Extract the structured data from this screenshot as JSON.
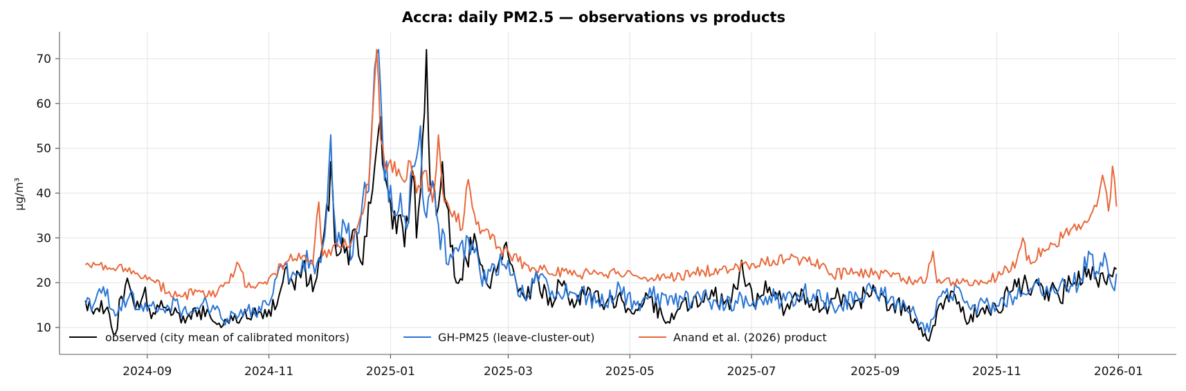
{
  "chart_data": {
    "type": "line",
    "title": "Accra: daily PM2.5 — observations vs products",
    "xlabel": "",
    "ylabel": "µg/m³",
    "xlim": [
      "2024-07-19",
      "2026-01-30"
    ],
    "ylim": [
      4,
      76
    ],
    "x_ticks": [
      "2024-09-01",
      "2024-11-01",
      "2025-01-01",
      "2025-03-01",
      "2025-05-01",
      "2025-07-01",
      "2025-09-01",
      "2025-11-01",
      "2026-01-01"
    ],
    "x_tick_labels": [
      "2024-09",
      "2024-11",
      "2025-01",
      "2025-03",
      "2025-05",
      "2025-07",
      "2025-09",
      "2025-11",
      "2026-01"
    ],
    "y_ticks": [
      10,
      20,
      30,
      40,
      50,
      60,
      70
    ],
    "grid": true,
    "legend_position": "lower-left",
    "series": [
      {
        "name": "observed (city mean of calibrated monitors)",
        "color": "#000000",
        "points": [
          [
            "2024-08-01",
            16
          ],
          [
            "2024-08-05",
            13
          ],
          [
            "2024-08-09",
            16
          ],
          [
            "2024-08-13",
            13
          ],
          [
            "2024-08-16",
            8.5
          ],
          [
            "2024-08-19",
            17
          ],
          [
            "2024-08-22",
            21
          ],
          [
            "2024-08-26",
            14
          ],
          [
            "2024-08-31",
            19
          ],
          [
            "2024-09-03",
            12
          ],
          [
            "2024-09-08",
            16
          ],
          [
            "2024-09-14",
            13
          ],
          [
            "2024-09-20",
            11
          ],
          [
            "2024-09-27",
            14
          ],
          [
            "2024-10-03",
            12
          ],
          [
            "2024-10-08",
            10
          ],
          [
            "2024-10-15",
            13
          ],
          [
            "2024-10-22",
            12
          ],
          [
            "2024-10-30",
            14
          ],
          [
            "2024-11-05",
            15
          ],
          [
            "2024-11-09",
            23
          ],
          [
            "2024-11-13",
            20
          ],
          [
            "2024-11-18",
            24
          ],
          [
            "2024-11-23",
            18
          ],
          [
            "2024-11-27",
            26
          ],
          [
            "2024-12-01",
            36
          ],
          [
            "2024-12-02",
            47
          ],
          [
            "2024-12-05",
            26
          ],
          [
            "2024-12-08",
            30
          ],
          [
            "2024-12-11",
            24
          ],
          [
            "2024-12-14",
            32
          ],
          [
            "2024-12-18",
            24
          ],
          [
            "2024-12-21",
            38
          ],
          [
            "2024-12-25",
            50
          ],
          [
            "2024-12-27",
            57
          ],
          [
            "2024-12-30",
            42
          ],
          [
            "2025-01-02",
            32
          ],
          [
            "2025-01-05",
            35
          ],
          [
            "2025-01-08",
            28
          ],
          [
            "2025-01-12",
            45
          ],
          [
            "2025-01-14",
            30
          ],
          [
            "2025-01-17",
            52
          ],
          [
            "2025-01-19",
            72
          ],
          [
            "2025-01-21",
            40
          ],
          [
            "2025-01-24",
            35
          ],
          [
            "2025-01-27",
            47
          ],
          [
            "2025-01-31",
            28
          ],
          [
            "2025-02-03",
            20
          ],
          [
            "2025-02-08",
            25
          ],
          [
            "2025-02-13",
            29
          ],
          [
            "2025-02-18",
            20
          ],
          [
            "2025-02-24",
            24
          ],
          [
            "2025-03-01",
            26
          ],
          [
            "2025-03-05",
            20
          ],
          [
            "2025-03-10",
            16
          ],
          [
            "2025-03-16",
            21
          ],
          [
            "2025-03-21",
            15
          ],
          [
            "2025-03-27",
            20
          ],
          [
            "2025-04-01",
            15
          ],
          [
            "2025-04-10",
            19
          ],
          [
            "2025-04-18",
            14
          ],
          [
            "2025-04-25",
            17
          ],
          [
            "2025-05-03",
            13
          ],
          [
            "2025-05-10",
            17
          ],
          [
            "2025-05-17",
            13
          ],
          [
            "2025-05-21",
            11
          ],
          [
            "2025-05-28",
            16
          ],
          [
            "2025-06-05",
            15
          ],
          [
            "2025-06-12",
            17
          ],
          [
            "2025-06-20",
            14
          ],
          [
            "2025-06-26",
            25
          ],
          [
            "2025-07-02",
            15
          ],
          [
            "2025-07-10",
            19
          ],
          [
            "2025-07-18",
            14
          ],
          [
            "2025-07-27",
            18
          ],
          [
            "2025-08-05",
            14
          ],
          [
            "2025-08-14",
            17
          ],
          [
            "2025-08-23",
            16
          ],
          [
            "2025-09-01",
            18
          ],
          [
            "2025-09-09",
            15
          ],
          [
            "2025-09-17",
            14
          ],
          [
            "2025-09-24",
            10
          ],
          [
            "2025-09-28",
            7
          ],
          [
            "2025-10-03",
            15
          ],
          [
            "2025-10-10",
            18
          ],
          [
            "2025-10-16",
            12
          ],
          [
            "2025-10-24",
            14
          ],
          [
            "2025-11-01",
            14
          ],
          [
            "2025-11-08",
            18
          ],
          [
            "2025-11-16",
            20
          ],
          [
            "2025-11-24",
            19
          ],
          [
            "2025-12-02",
            17
          ],
          [
            "2025-12-10",
            20
          ],
          [
            "2025-12-17",
            23
          ],
          [
            "2025-12-22",
            19
          ],
          [
            "2025-12-27",
            22
          ],
          [
            "2025-12-31",
            23
          ]
        ]
      },
      {
        "name": "GH-PM25 (leave-cluster-out)",
        "color": "#2b75d4",
        "points": [
          [
            "2024-08-01",
            15
          ],
          [
            "2024-08-06",
            16
          ],
          [
            "2024-08-11",
            17
          ],
          [
            "2024-08-17",
            13
          ],
          [
            "2024-08-23",
            17
          ],
          [
            "2024-08-28",
            14
          ],
          [
            "2024-09-02",
            15
          ],
          [
            "2024-09-08",
            14
          ],
          [
            "2024-09-15",
            16
          ],
          [
            "2024-09-21",
            13
          ],
          [
            "2024-09-28",
            15
          ],
          [
            "2024-10-05",
            14
          ],
          [
            "2024-10-11",
            12
          ],
          [
            "2024-10-18",
            14
          ],
          [
            "2024-10-25",
            13
          ],
          [
            "2024-11-01",
            15
          ],
          [
            "2024-11-07",
            24
          ],
          [
            "2024-11-12",
            21
          ],
          [
            "2024-11-18",
            25
          ],
          [
            "2024-11-24",
            22
          ],
          [
            "2024-11-28",
            28
          ],
          [
            "2024-12-01",
            45
          ],
          [
            "2024-12-02",
            53
          ],
          [
            "2024-12-05",
            28
          ],
          [
            "2024-12-09",
            33
          ],
          [
            "2024-12-13",
            26
          ],
          [
            "2024-12-17",
            34
          ],
          [
            "2024-12-20",
            40
          ],
          [
            "2024-12-23",
            58
          ],
          [
            "2024-12-25",
            71
          ],
          [
            "2024-12-26",
            72
          ],
          [
            "2024-12-28",
            52
          ],
          [
            "2024-12-31",
            38
          ],
          [
            "2025-01-03",
            35
          ],
          [
            "2025-01-06",
            40
          ],
          [
            "2025-01-09",
            32
          ],
          [
            "2025-01-13",
            46
          ],
          [
            "2025-01-16",
            55
          ],
          [
            "2025-01-18",
            36
          ],
          [
            "2025-01-21",
            40
          ],
          [
            "2025-01-25",
            33
          ],
          [
            "2025-01-30",
            24
          ],
          [
            "2025-02-04",
            27
          ],
          [
            "2025-02-09",
            30
          ],
          [
            "2025-02-15",
            22
          ],
          [
            "2025-02-22",
            24
          ],
          [
            "2025-03-01",
            25
          ],
          [
            "2025-03-05",
            20
          ],
          [
            "2025-03-11",
            17
          ],
          [
            "2025-03-18",
            22
          ],
          [
            "2025-03-25",
            17
          ],
          [
            "2025-04-01",
            18
          ],
          [
            "2025-04-10",
            17
          ],
          [
            "2025-04-18",
            15
          ],
          [
            "2025-04-26",
            19
          ],
          [
            "2025-05-04",
            15
          ],
          [
            "2025-05-12",
            17
          ],
          [
            "2025-05-20",
            15
          ],
          [
            "2025-05-28",
            16
          ],
          [
            "2025-06-05",
            17
          ],
          [
            "2025-06-14",
            15
          ],
          [
            "2025-06-23",
            16
          ],
          [
            "2025-07-01",
            15
          ],
          [
            "2025-07-10",
            17
          ],
          [
            "2025-07-18",
            16
          ],
          [
            "2025-07-27",
            18
          ],
          [
            "2025-08-05",
            16
          ],
          [
            "2025-08-14",
            15
          ],
          [
            "2025-08-23",
            17
          ],
          [
            "2025-09-01",
            19
          ],
          [
            "2025-09-08",
            16
          ],
          [
            "2025-09-16",
            15
          ],
          [
            "2025-09-22",
            12
          ],
          [
            "2025-09-28",
            9
          ],
          [
            "2025-10-04",
            17
          ],
          [
            "2025-10-12",
            19
          ],
          [
            "2025-10-20",
            15
          ],
          [
            "2025-10-28",
            15
          ],
          [
            "2025-11-05",
            15
          ],
          [
            "2025-11-12",
            19
          ],
          [
            "2025-11-20",
            20
          ],
          [
            "2025-11-28",
            18
          ],
          [
            "2025-12-06",
            19
          ],
          [
            "2025-12-13",
            21
          ],
          [
            "2025-12-17",
            27
          ],
          [
            "2025-12-22",
            22
          ],
          [
            "2025-12-26",
            25
          ],
          [
            "2025-12-29",
            19
          ],
          [
            "2025-12-31",
            22
          ]
        ]
      },
      {
        "name": "Anand et al. (2026) product",
        "color": "#e8683a",
        "points": [
          [
            "2024-08-01",
            24
          ],
          [
            "2024-08-06",
            24
          ],
          [
            "2024-08-12",
            23
          ],
          [
            "2024-08-18",
            24
          ],
          [
            "2024-08-24",
            22
          ],
          [
            "2024-08-30",
            21
          ],
          [
            "2024-09-05",
            20
          ],
          [
            "2024-09-12",
            18
          ],
          [
            "2024-09-19",
            17
          ],
          [
            "2024-09-26",
            18
          ],
          [
            "2024-10-03",
            17
          ],
          [
            "2024-10-10",
            20
          ],
          [
            "2024-10-17",
            24
          ],
          [
            "2024-10-21",
            19
          ],
          [
            "2024-10-28",
            20
          ],
          [
            "2024-11-04",
            22
          ],
          [
            "2024-11-11",
            25
          ],
          [
            "2024-11-18",
            26
          ],
          [
            "2024-11-23",
            24
          ],
          [
            "2024-11-26",
            38
          ],
          [
            "2024-11-28",
            26
          ],
          [
            "2024-12-03",
            28
          ],
          [
            "2024-12-08",
            28
          ],
          [
            "2024-12-13",
            30
          ],
          [
            "2024-12-17",
            35
          ],
          [
            "2024-12-21",
            42
          ],
          [
            "2024-12-24",
            65
          ],
          [
            "2024-12-25",
            72
          ],
          [
            "2024-12-27",
            52
          ],
          [
            "2024-12-30",
            45
          ],
          [
            "2025-01-03",
            47
          ],
          [
            "2025-01-07",
            43
          ],
          [
            "2025-01-11",
            47
          ],
          [
            "2025-01-14",
            40
          ],
          [
            "2025-01-18",
            45
          ],
          [
            "2025-01-22",
            38
          ],
          [
            "2025-01-25",
            53
          ],
          [
            "2025-01-28",
            38
          ],
          [
            "2025-02-02",
            36
          ],
          [
            "2025-02-06",
            32
          ],
          [
            "2025-02-09",
            43
          ],
          [
            "2025-02-13",
            33
          ],
          [
            "2025-02-18",
            32
          ],
          [
            "2025-02-24",
            28
          ],
          [
            "2025-03-02",
            26
          ],
          [
            "2025-03-10",
            24
          ],
          [
            "2025-03-20",
            23
          ],
          [
            "2025-03-31",
            22
          ],
          [
            "2025-04-12",
            22
          ],
          [
            "2025-04-24",
            22
          ],
          [
            "2025-05-06",
            21
          ],
          [
            "2025-05-19",
            21
          ],
          [
            "2025-06-01",
            22
          ],
          [
            "2025-06-15",
            23
          ],
          [
            "2025-06-29",
            24
          ],
          [
            "2025-07-12",
            25
          ],
          [
            "2025-07-26",
            25
          ],
          [
            "2025-08-05",
            24
          ],
          [
            "2025-08-10",
            22
          ],
          [
            "2025-08-21",
            22
          ],
          [
            "2025-09-02",
            22
          ],
          [
            "2025-09-15",
            21
          ],
          [
            "2025-09-26",
            20
          ],
          [
            "2025-09-30",
            27
          ],
          [
            "2025-10-02",
            20
          ],
          [
            "2025-10-14",
            20
          ],
          [
            "2025-10-26",
            20
          ],
          [
            "2025-11-04",
            22
          ],
          [
            "2025-11-11",
            25
          ],
          [
            "2025-11-14",
            30
          ],
          [
            "2025-11-16",
            25
          ],
          [
            "2025-11-25",
            27
          ],
          [
            "2025-12-05",
            31
          ],
          [
            "2025-12-12",
            33
          ],
          [
            "2025-12-18",
            35
          ],
          [
            "2025-12-21",
            37
          ],
          [
            "2025-12-24",
            44
          ],
          [
            "2025-12-27",
            36
          ],
          [
            "2025-12-29",
            46
          ],
          [
            "2025-12-31",
            37
          ]
        ]
      }
    ]
  }
}
